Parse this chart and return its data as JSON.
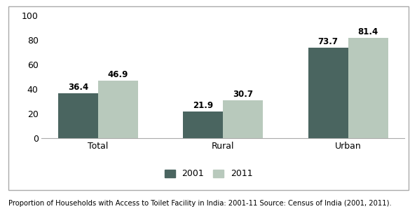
{
  "categories": [
    "Total",
    "Rural",
    "Urban"
  ],
  "values_2001": [
    36.4,
    21.9,
    73.7
  ],
  "values_2011": [
    46.9,
    30.7,
    81.4
  ],
  "color_2001": "#4a6560",
  "color_2011": "#b8c9bc",
  "ylim": [
    0,
    100
  ],
  "yticks": [
    0,
    20,
    40,
    60,
    80,
    100
  ],
  "legend_labels": [
    "2001",
    "2011"
  ],
  "caption": "Proportion of Households with Access to Toilet Facility in India: 2001-11 Source: Census of India (2001, 2011).",
  "bar_width": 0.32,
  "background_color": "#ffffff",
  "plot_bg_color": "#ffffff",
  "tick_fontsize": 9,
  "legend_fontsize": 9,
  "caption_fontsize": 7.2,
  "value_fontsize": 8.5
}
